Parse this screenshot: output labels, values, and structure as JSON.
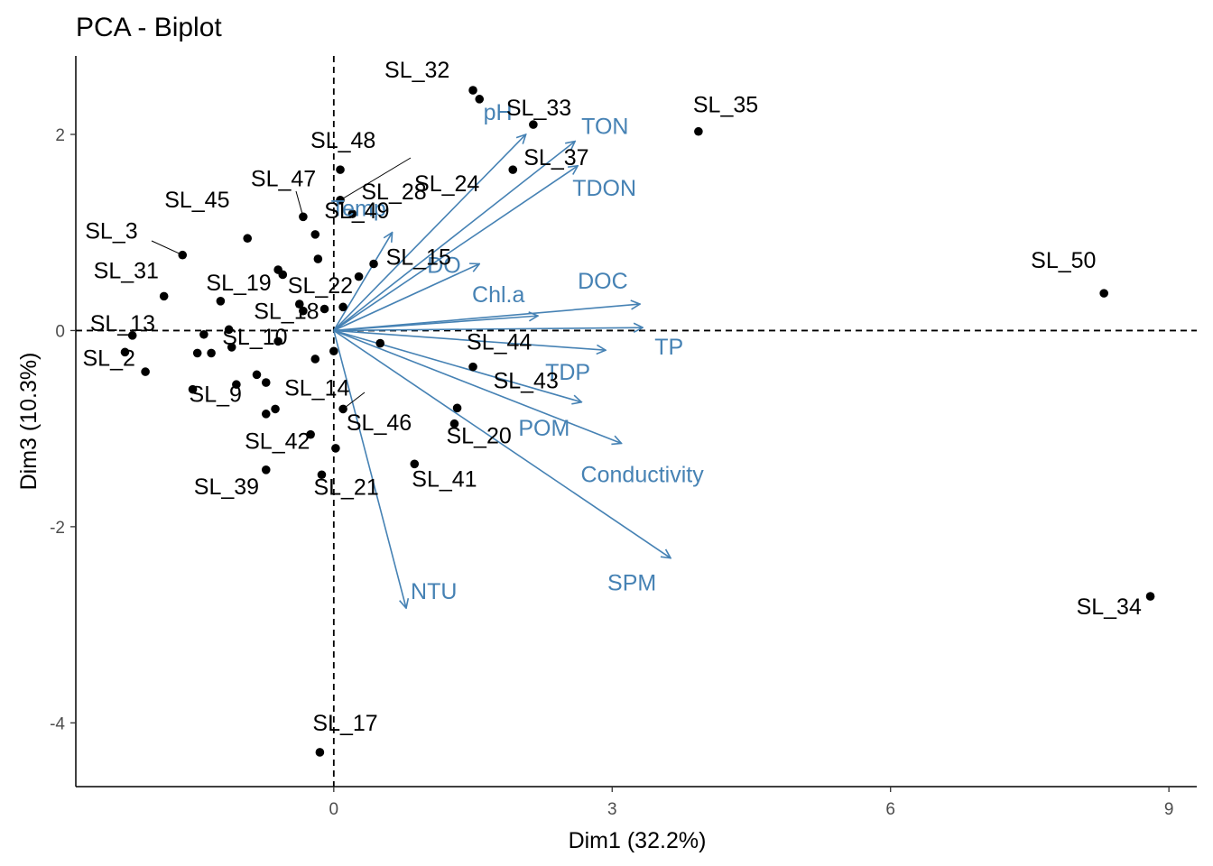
{
  "chart_data": {
    "type": "scatter",
    "subtype": "pca-biplot",
    "title": "PCA - Biplot",
    "xlabel": "Dim1 (32.2%)",
    "ylabel": "Dim3 (10.3%)",
    "xlim": [
      -2.78,
      9.3
    ],
    "ylim": [
      -4.65,
      2.8
    ],
    "xticks": [
      0,
      3,
      6,
      9
    ],
    "yticks": [
      -4,
      -2,
      0,
      2
    ],
    "grid": false,
    "reference_lines": [
      {
        "axis": "x",
        "value": 0,
        "style": "dashed"
      },
      {
        "axis": "y",
        "value": 0,
        "style": "dashed"
      }
    ],
    "colors": {
      "points": "#000000",
      "arrows": "#4682B4"
    },
    "points": [
      {
        "label": "SL_32",
        "x": 1.5,
        "y": 2.45
      },
      {
        "label": "",
        "x": 1.57,
        "y": 2.36
      },
      {
        "label": "SL_35",
        "x": 3.93,
        "y": 2.03
      },
      {
        "label": "SL_33",
        "x": 2.15,
        "y": 2.1
      },
      {
        "label": "SL_37",
        "x": 1.93,
        "y": 1.64
      },
      {
        "label": "SL_48",
        "x": 0.07,
        "y": 1.64
      },
      {
        "label": "SL_24",
        "x": 0.07,
        "y": 1.33
      },
      {
        "label": "SL_47",
        "x": -0.33,
        "y": 1.16
      },
      {
        "label": "SL_28",
        "x": 0.2,
        "y": 1.19
      },
      {
        "label": "SL_45",
        "x": -0.93,
        "y": 0.94
      },
      {
        "label": "SL_3",
        "x": -1.63,
        "y": 0.77
      },
      {
        "label": "SL_49",
        "x": -0.2,
        "y": 0.98
      },
      {
        "label": "",
        "x": -0.17,
        "y": 0.73
      },
      {
        "label": "",
        "x": 0.43,
        "y": 0.68
      },
      {
        "label": "SL_15",
        "x": 0.27,
        "y": 0.55
      },
      {
        "label": "",
        "x": -0.6,
        "y": 0.62
      },
      {
        "label": "",
        "x": -0.55,
        "y": 0.57
      },
      {
        "label": "SL_31",
        "x": -1.83,
        "y": 0.35
      },
      {
        "label": "SL_19",
        "x": -1.22,
        "y": 0.3
      },
      {
        "label": "SL_22",
        "x": -0.37,
        "y": 0.27
      },
      {
        "label": "",
        "x": -0.33,
        "y": 0.2
      },
      {
        "label": "",
        "x": -0.1,
        "y": 0.22
      },
      {
        "label": "",
        "x": 0.1,
        "y": 0.24
      },
      {
        "label": "SL_13",
        "x": -2.17,
        "y": -0.05
      },
      {
        "label": "",
        "x": -1.4,
        "y": -0.04
      },
      {
        "label": "",
        "x": -1.13,
        "y": 0.01
      },
      {
        "label": "SL_18",
        "x": 0.5,
        "y": -0.13
      },
      {
        "label": "SL_2",
        "x": -2.25,
        "y": -0.22
      },
      {
        "label": "",
        "x": -2.03,
        "y": -0.42
      },
      {
        "label": "",
        "x": -1.47,
        "y": -0.23
      },
      {
        "label": "",
        "x": -1.32,
        "y": -0.23
      },
      {
        "label": "",
        "x": -1.1,
        "y": -0.17
      },
      {
        "label": "",
        "x": -0.6,
        "y": -0.11
      },
      {
        "label": "",
        "x": 0.0,
        "y": -0.21
      },
      {
        "label": "SL_44",
        "x": 1.5,
        "y": -0.37
      },
      {
        "label": "SL_10",
        "x": -0.2,
        "y": -0.29
      },
      {
        "label": "",
        "x": -0.83,
        "y": -0.45
      },
      {
        "label": "",
        "x": -0.73,
        "y": -0.53
      },
      {
        "label": "",
        "x": -1.05,
        "y": -0.55
      },
      {
        "label": "SL_9",
        "x": -1.52,
        "y": -0.6
      },
      {
        "label": "SL_14",
        "x": 0.1,
        "y": -0.8
      },
      {
        "label": "",
        "x": -0.63,
        "y": -0.8
      },
      {
        "label": "",
        "x": -0.73,
        "y": -0.85
      },
      {
        "label": "SL_43",
        "x": 1.33,
        "y": -0.79
      },
      {
        "label": "SL_20",
        "x": 1.3,
        "y": -0.95
      },
      {
        "label": "SL_42",
        "x": -0.25,
        "y": -1.06
      },
      {
        "label": "SL_46",
        "x": 0.02,
        "y": -1.2
      },
      {
        "label": "SL_41",
        "x": 0.87,
        "y": -1.36
      },
      {
        "label": "SL_39",
        "x": -0.73,
        "y": -1.42
      },
      {
        "label": "SL_21",
        "x": -0.13,
        "y": -1.47
      },
      {
        "label": "SL_50",
        "x": 8.3,
        "y": 0.38
      },
      {
        "label": "SL_34",
        "x": 8.8,
        "y": -2.71
      },
      {
        "label": "SL_17",
        "x": -0.15,
        "y": -4.3
      }
    ],
    "variables": [
      {
        "label": "pH",
        "x": 2.07,
        "y": 2.0
      },
      {
        "label": "TON",
        "x": 2.6,
        "y": 1.93
      },
      {
        "label": "TDON",
        "x": 2.63,
        "y": 1.68
      },
      {
        "label": "Temp",
        "x": 0.63,
        "y": 1.0
      },
      {
        "label": "DO",
        "x": 1.57,
        "y": 0.68
      },
      {
        "label": "Chl.a",
        "x": 2.2,
        "y": 0.15
      },
      {
        "label": "DOC",
        "x": 3.3,
        "y": 0.27
      },
      {
        "label": "TP",
        "x": 3.33,
        "y": 0.03
      },
      {
        "label": "TDP",
        "x": 2.93,
        "y": -0.2
      },
      {
        "label": "POM",
        "x": 2.67,
        "y": -0.73
      },
      {
        "label": "Conductivity",
        "x": 3.1,
        "y": -1.15
      },
      {
        "label": "SPM",
        "x": 3.63,
        "y": -2.32
      },
      {
        "label": "NTU",
        "x": 0.78,
        "y": -2.83
      }
    ]
  }
}
